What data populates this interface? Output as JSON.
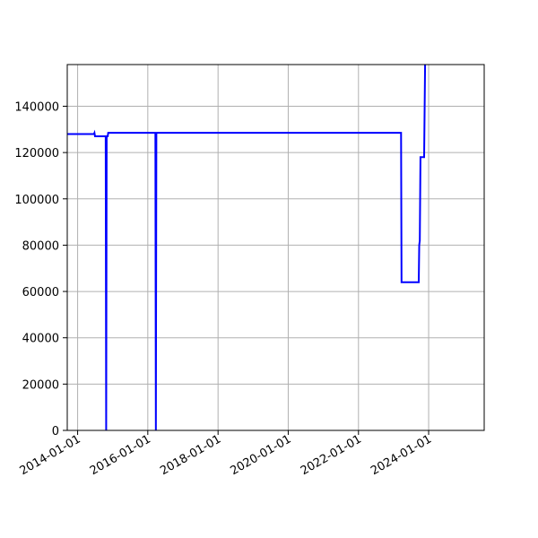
{
  "chart_data": {
    "type": "line",
    "title": "",
    "xlabel": "",
    "ylabel": "",
    "x_is_date": true,
    "xlim": [
      "2013-09-15",
      "2025-08-01"
    ],
    "ylim": [
      0,
      158000
    ],
    "grid": true,
    "x_ticks": [
      "2014-01-01",
      "2016-01-01",
      "2018-01-01",
      "2020-01-01",
      "2022-01-01",
      "2024-01-01"
    ],
    "y_ticks": [
      0,
      20000,
      40000,
      60000,
      80000,
      100000,
      120000,
      140000
    ],
    "y_tick_labels": [
      "0",
      "20000",
      "40000",
      "60000",
      "80000",
      "100000",
      "120000",
      "140000"
    ],
    "colors": {
      "line": "#0000ff",
      "grid": "#b0b0b0",
      "axis": "#000000"
    },
    "series": [
      {
        "points": [
          [
            "2013-09-15",
            128000
          ],
          [
            "2014-06-20",
            128000
          ],
          [
            "2014-06-25",
            128500
          ],
          [
            "2014-07-01",
            127000
          ],
          [
            "2014-10-20",
            127000
          ],
          [
            "2014-10-25",
            0
          ],
          [
            "2014-10-30",
            127000
          ],
          [
            "2014-11-10",
            127000
          ],
          [
            "2014-11-15",
            128500
          ],
          [
            "2016-03-20",
            128500
          ],
          [
            "2016-03-25",
            0
          ],
          [
            "2016-03-30",
            128500
          ],
          [
            "2023-03-20",
            128500
          ],
          [
            "2023-03-25",
            64000
          ],
          [
            "2023-09-20",
            64000
          ],
          [
            "2023-09-25",
            80000
          ],
          [
            "2023-10-01",
            82000
          ],
          [
            "2023-10-08",
            118000
          ],
          [
            "2023-11-15",
            118000
          ],
          [
            "2023-11-25",
            158000
          ]
        ]
      }
    ]
  }
}
